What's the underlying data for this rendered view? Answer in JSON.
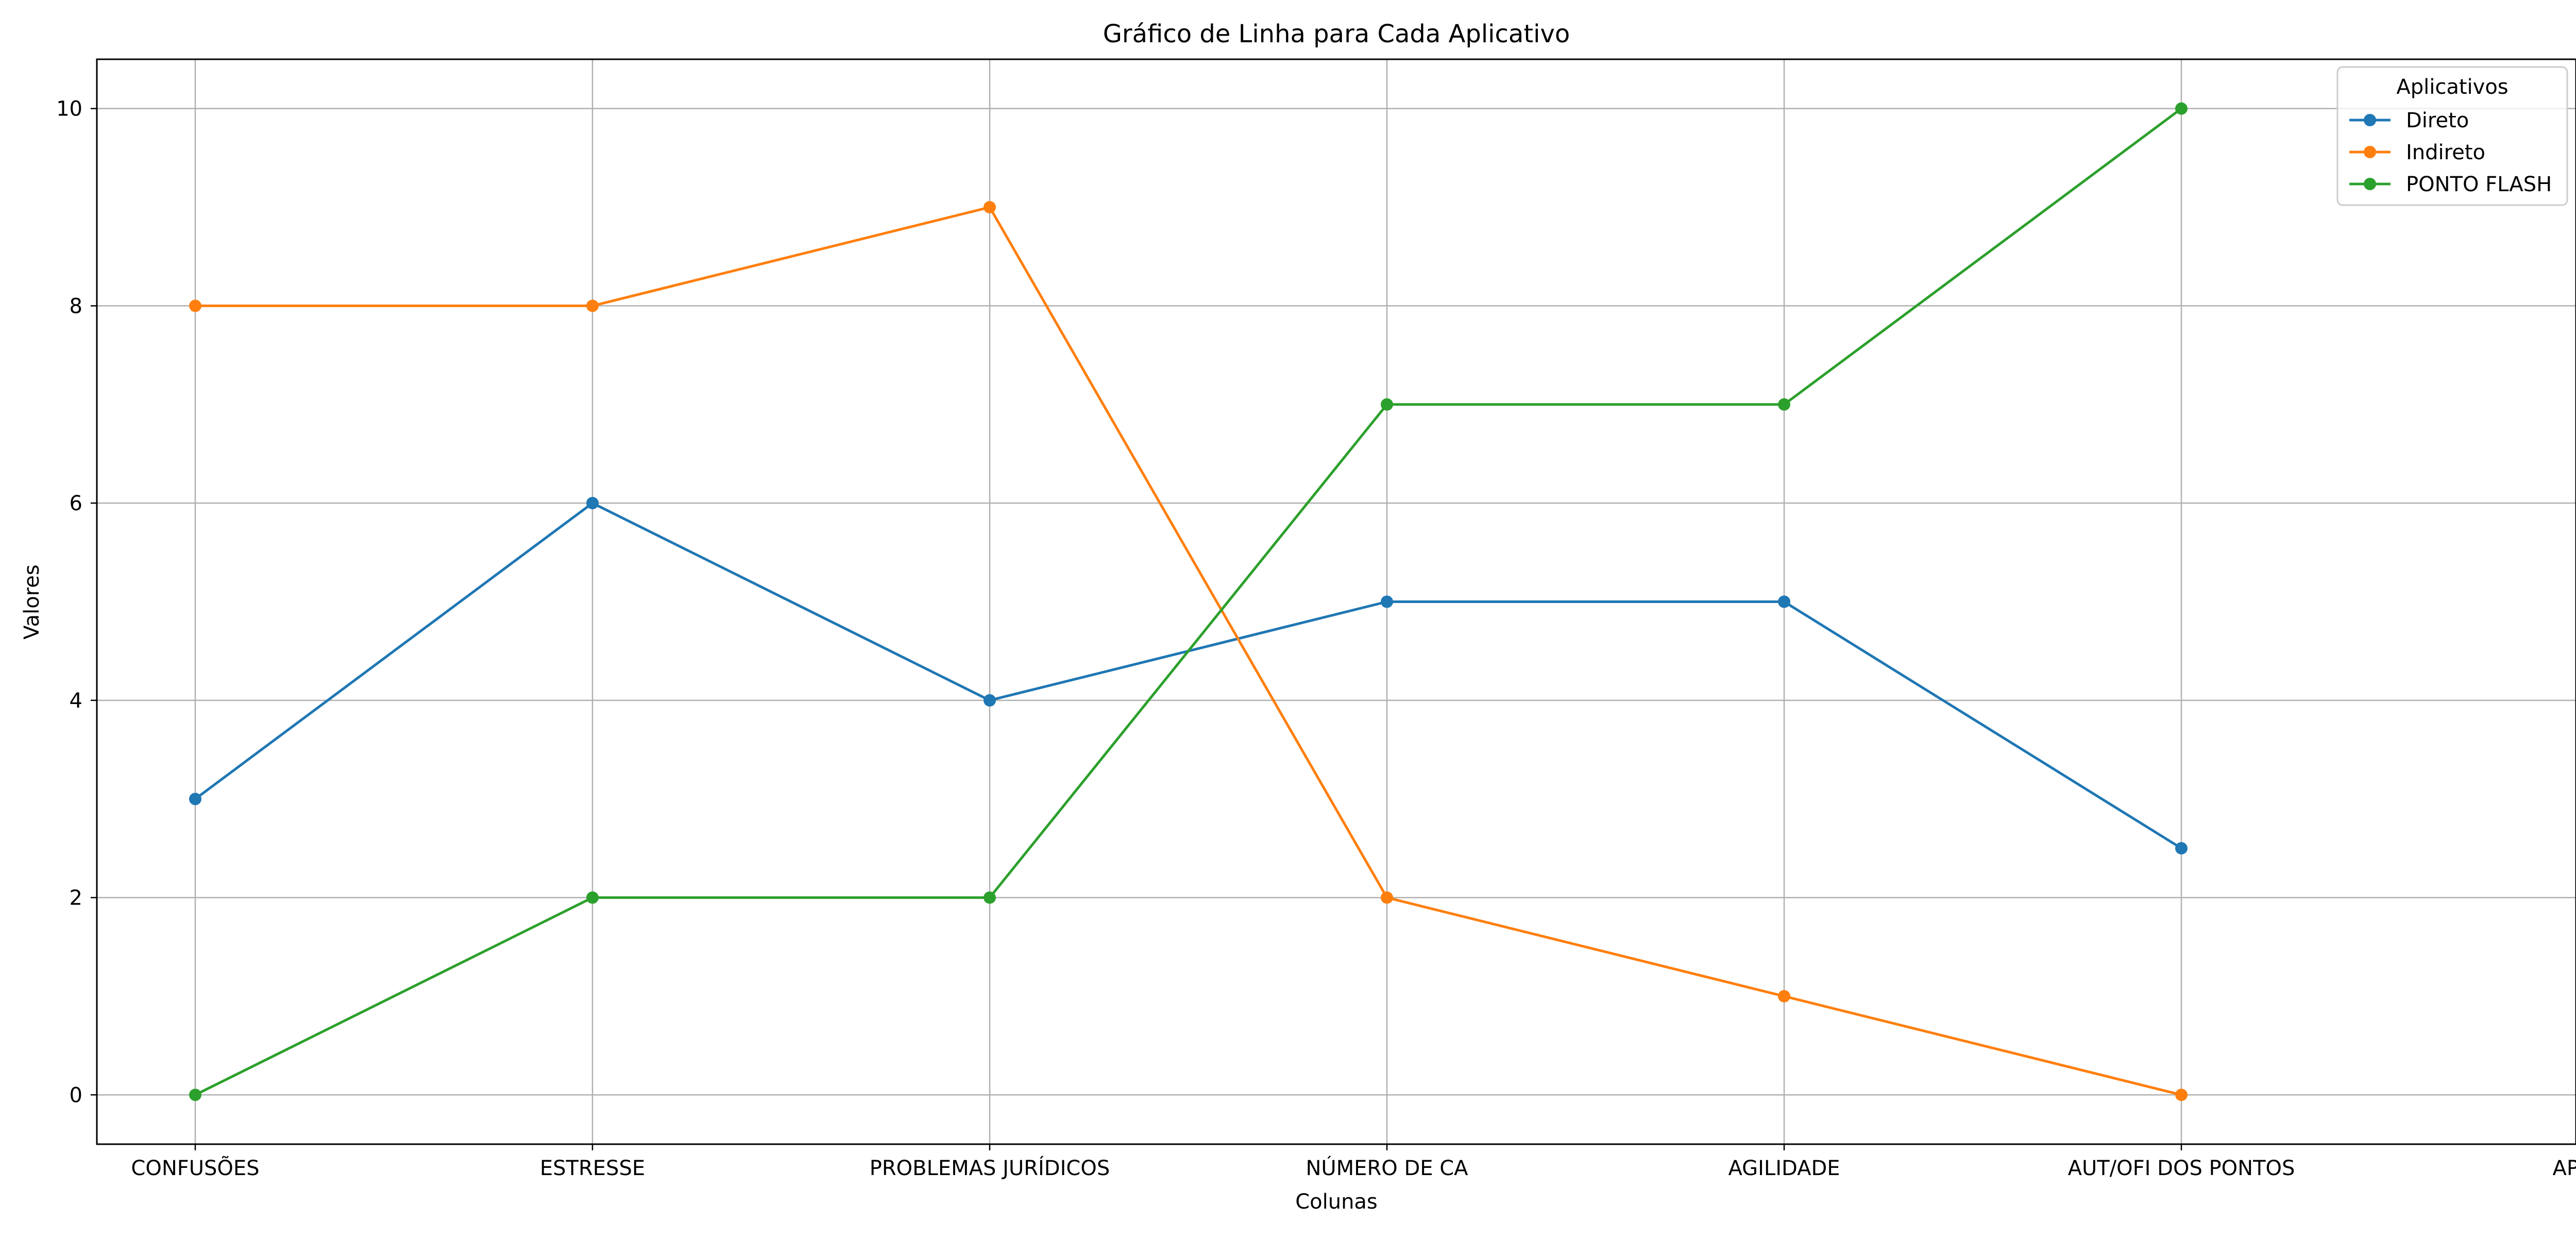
{
  "chart_data": {
    "type": "line",
    "title": "Gráfico de Linha para Cada Aplicativo",
    "xlabel": "Colunas",
    "ylabel": "Valores",
    "categories": [
      "CONFUSÕES",
      "ESTRESSE",
      "PROBLEMAS JURÍDICOS",
      "NÚMERO DE CA",
      "AGILIDADE",
      "AUT/OFI DOS PONTOS",
      "APPS"
    ],
    "ylim": [
      -0.5,
      10.5
    ],
    "yticks": [
      0,
      2,
      4,
      6,
      8,
      10
    ],
    "grid": true,
    "legend": {
      "title": "Aplicativos",
      "placement": "top-right"
    },
    "series": [
      {
        "name": "Direto",
        "color": "#1f77b4",
        "values": [
          3,
          6,
          4,
          5,
          5,
          2.5,
          null
        ]
      },
      {
        "name": "Indireto",
        "color": "#ff7f0e",
        "values": [
          8,
          8,
          9,
          2,
          1,
          0,
          null
        ]
      },
      {
        "name": "PONTO FLASH",
        "color": "#2ca02c",
        "values": [
          0,
          2,
          2,
          7,
          7,
          10,
          null
        ]
      }
    ],
    "marker": "circle"
  }
}
